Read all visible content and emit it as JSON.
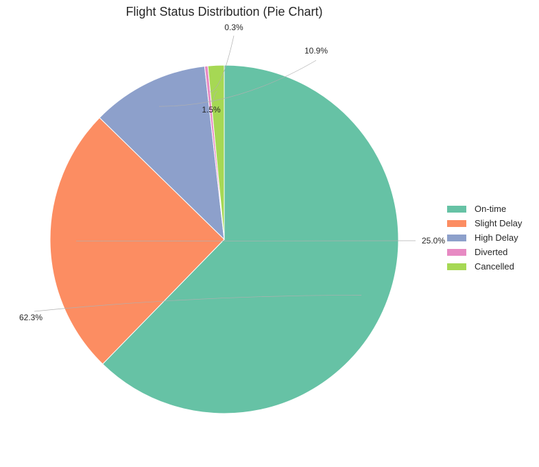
{
  "chart_data": {
    "type": "pie",
    "title": "Flight Status Distribution (Pie Chart)",
    "labels": [
      "On-time",
      "Slight Delay",
      "High Delay",
      "Diverted",
      "Cancelled"
    ],
    "values": [
      62.3,
      25.0,
      10.9,
      0.3,
      1.5
    ],
    "value_labels": [
      "62.3%",
      "25.0%",
      "10.9%",
      "0.3%",
      "1.5%"
    ],
    "colors": [
      "#66c2a5",
      "#fc8d62",
      "#8da0cb",
      "#e78ac3",
      "#a6d854"
    ],
    "start_angle_deg": 90,
    "direction": "clockwise",
    "legend_position": "right",
    "grid": false
  }
}
